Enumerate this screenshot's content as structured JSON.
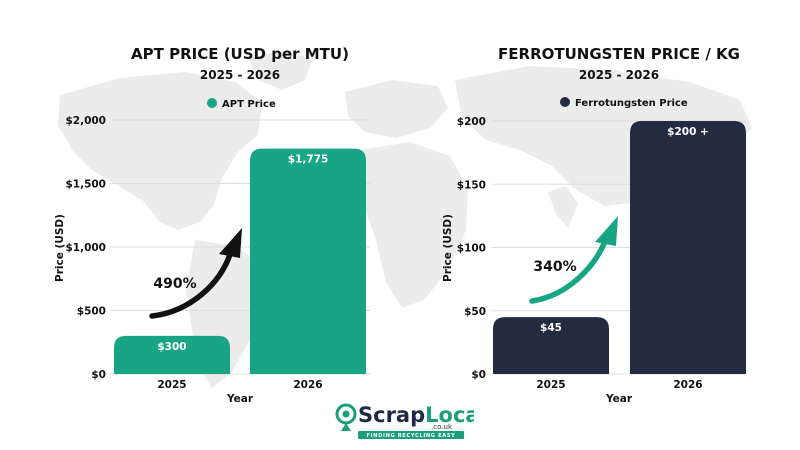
{
  "colors": {
    "apt": "#18a585",
    "ferro": "#232b41",
    "grid": "#dddddd",
    "map": "#e9e9e9",
    "logo_green": "#1b9e7c",
    "logo_navy": "#1e2a44"
  },
  "logo": {
    "word_part1": "Scrap",
    "word_part2": "Local",
    "domain": ".co.uk",
    "tagline": "FINDING RECYCLING EASY"
  },
  "chart_data": [
    {
      "type": "bar",
      "title": "APT PRICE (USD per MTU)",
      "subtitle": "2025 - 2026",
      "legend": "APT Price",
      "categories": [
        "2025",
        "2026"
      ],
      "values": [
        300,
        1775
      ],
      "bar_labels": [
        "$300",
        "$1,775"
      ],
      "ylim": [
        0,
        2000
      ],
      "yticks": [
        0,
        500,
        1000,
        1500,
        2000
      ],
      "ytick_labels": [
        "$0",
        "$500",
        "$1,000",
        "$1,500",
        "$2,000"
      ],
      "xlabel": "Year",
      "ylabel": "Price (USD)",
      "annotation": "490%",
      "grid": true,
      "legend_position": "top-center"
    },
    {
      "type": "bar",
      "title": "FERROTUNGSTEN PRICE / KG",
      "subtitle": "2025 - 2026",
      "legend": "Ferrotungsten Price",
      "categories": [
        "2025",
        "2026"
      ],
      "values": [
        45,
        200
      ],
      "bar_labels": [
        "$45",
        "$200 +"
      ],
      "ylim": [
        0,
        200
      ],
      "yticks": [
        0,
        50,
        100,
        150,
        200
      ],
      "ytick_labels": [
        "$0",
        "$50",
        "$100",
        "$150",
        "$200"
      ],
      "xlabel": "Year",
      "ylabel": "Price (USD)",
      "annotation": "340%",
      "grid": true,
      "legend_position": "top-center"
    }
  ]
}
